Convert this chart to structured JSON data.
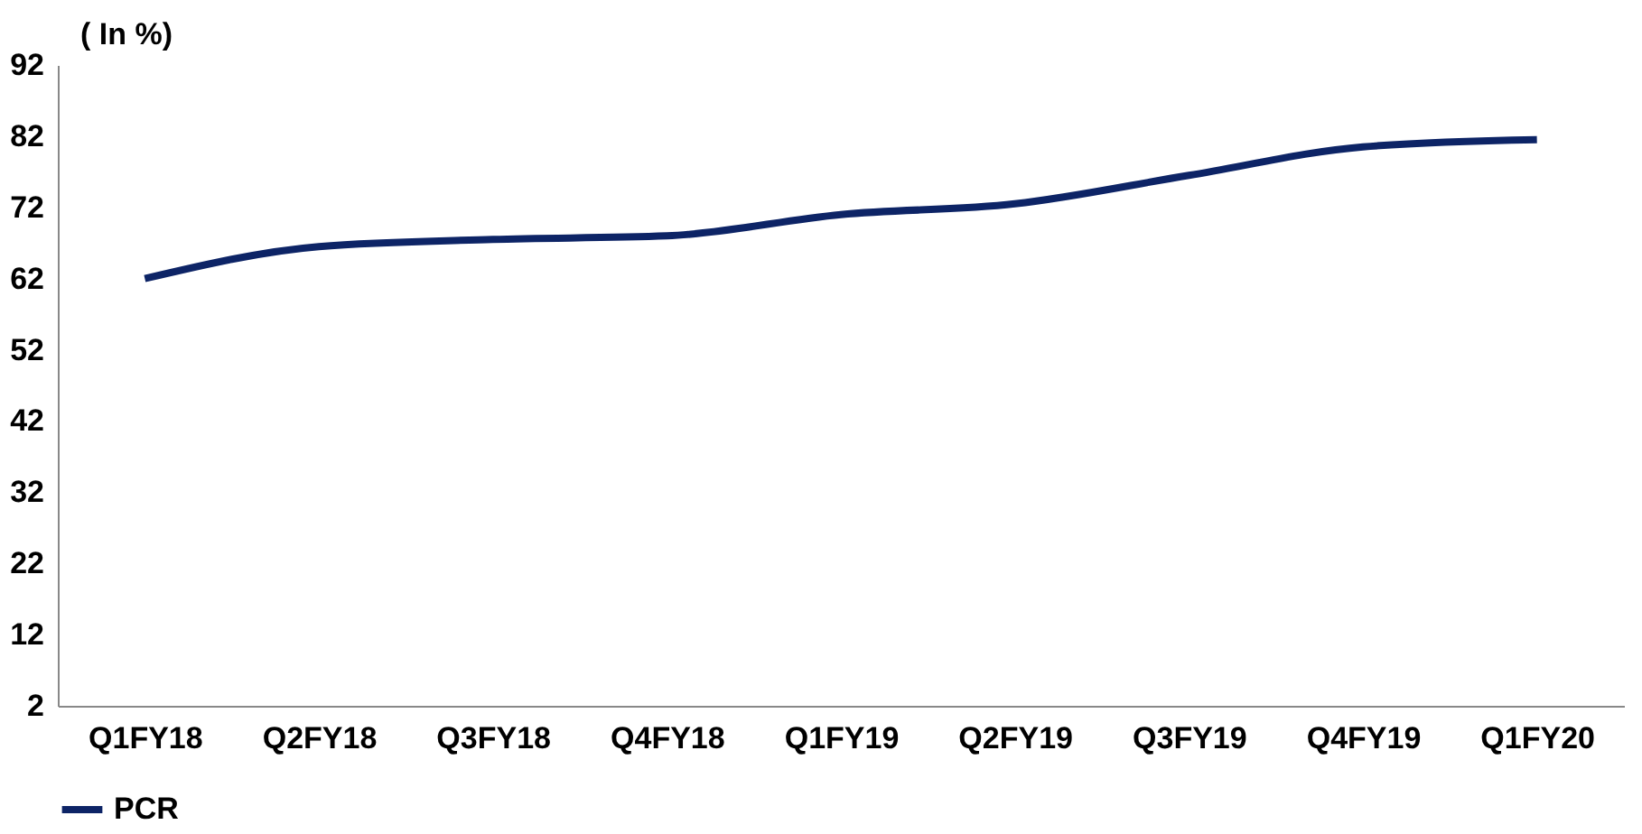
{
  "chart_data": {
    "type": "line",
    "ylabel": "( In %)",
    "categories": [
      "Q1FY18",
      "Q2FY18",
      "Q3FY18",
      "Q4FY18",
      "Q1FY19",
      "Q2FY19",
      "Q3FY19",
      "Q4FY19",
      "Q1FY20"
    ],
    "series": [
      {
        "name": "PCR",
        "color": "#0d2466",
        "values": [
          62,
          66.5,
          67.5,
          68,
          71,
          72.5,
          76.5,
          80.5,
          81.5
        ]
      }
    ],
    "ylim": [
      2,
      92
    ],
    "yticks": [
      2,
      12,
      22,
      32,
      42,
      52,
      62,
      72,
      82,
      92
    ],
    "grid": false,
    "legend": "bottom",
    "line_style": "solid",
    "marker": "none"
  }
}
